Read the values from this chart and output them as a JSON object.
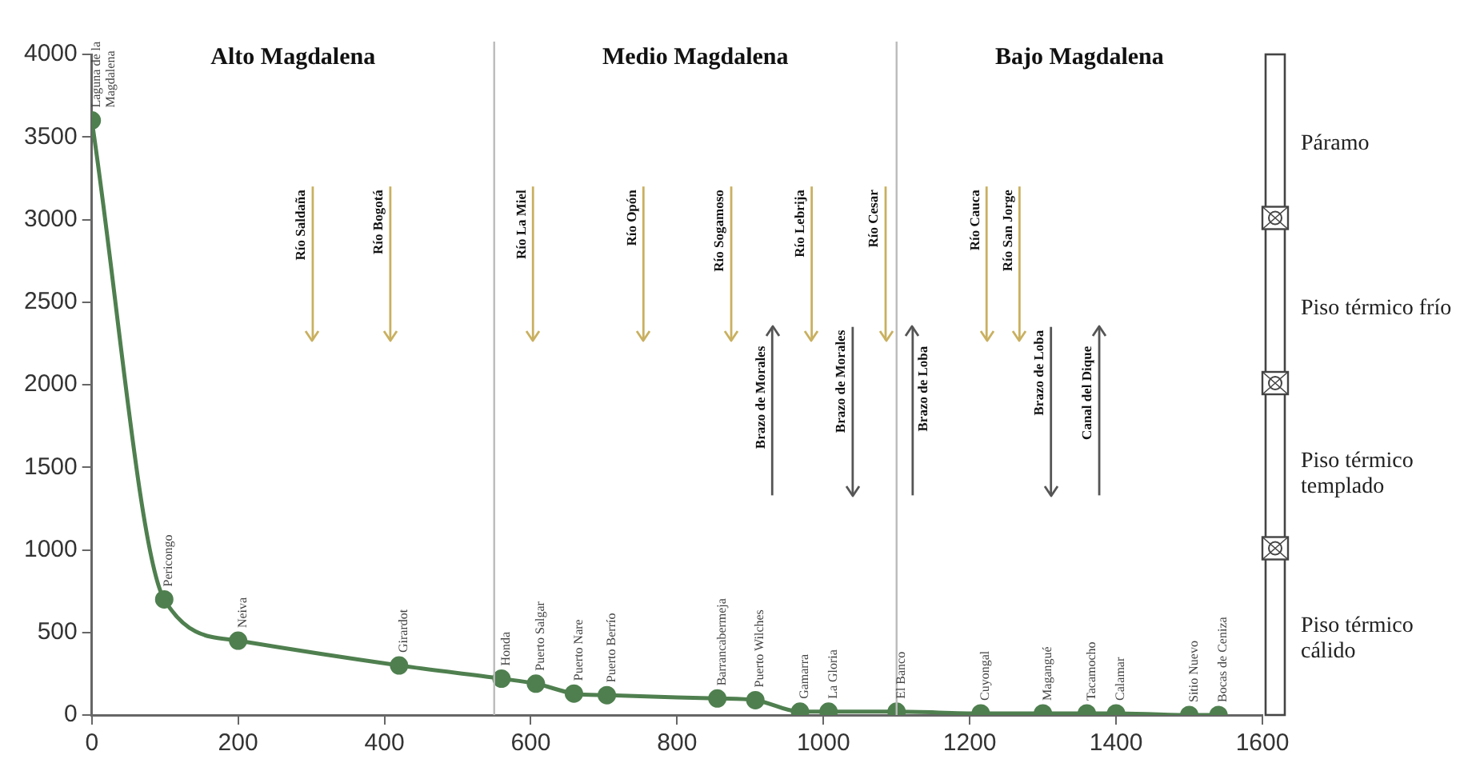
{
  "chart_data": {
    "type": "line",
    "xlim": [
      0,
      1600
    ],
    "xticks": [
      0,
      200,
      400,
      600,
      800,
      1000,
      1200,
      1400,
      1600
    ],
    "ylim": [
      0,
      4000
    ],
    "yticks": [
      0,
      500,
      1000,
      1500,
      2000,
      2500,
      3000,
      3500,
      4000
    ],
    "grid": false,
    "legend": false,
    "marker": "circle",
    "line_style": "solid",
    "series": [
      {
        "color": "#4f7f4f",
        "x": [
          0,
          99,
          200,
          420,
          560,
          607,
          659,
          704,
          855,
          907,
          968,
          1007,
          1100,
          1215,
          1300,
          1360,
          1400,
          1500,
          1540
        ],
        "values": [
          3600,
          700,
          450,
          300,
          220,
          190,
          130,
          120,
          100,
          90,
          20,
          20,
          20,
          10,
          10,
          10,
          10,
          0,
          0
        ]
      }
    ],
    "ref_lines": [
      {
        "axis": "x",
        "value": 550,
        "color": "#bbbbbb"
      },
      {
        "axis": "x",
        "value": 1100,
        "color": "#bbbbbb"
      },
      {
        "axis": "x",
        "value": 302,
        "label": "Río Saldaña",
        "color": "#c9b060"
      },
      {
        "axis": "x",
        "value": 408,
        "label": "Río Bogotá",
        "color": "#c9b060"
      },
      {
        "axis": "x",
        "value": 603,
        "label": "Río La Miel",
        "color": "#c9b060"
      },
      {
        "axis": "x",
        "value": 754,
        "label": "Río Opón",
        "color": "#c9b060"
      },
      {
        "axis": "x",
        "value": 874,
        "label": "Río Sogamoso",
        "color": "#c9b060"
      },
      {
        "axis": "x",
        "value": 930,
        "label": "Brazo de Morales",
        "color": "#555555"
      },
      {
        "axis": "x",
        "value": 984,
        "label": "Río Lebrija",
        "color": "#c9b060"
      },
      {
        "axis": "x",
        "value": 1040,
        "label": "Brazo de Morales",
        "color": "#555555"
      },
      {
        "axis": "x",
        "value": 1085,
        "label": "Río Cesar",
        "color": "#c9b060"
      },
      {
        "axis": "x",
        "value": 1122,
        "label": "Brazo de Loba",
        "color": "#555555"
      },
      {
        "axis": "x",
        "value": 1223,
        "label": "Río Cauca",
        "color": "#c9b060"
      },
      {
        "axis": "x",
        "value": 1268,
        "label": "Río San Jorge",
        "color": "#c9b060"
      },
      {
        "axis": "x",
        "value": 1311,
        "label": "Brazo de Loba",
        "color": "#555555"
      },
      {
        "axis": "x",
        "value": 1377,
        "label": "Canal del Dique",
        "color": "#555555"
      }
    ],
    "annotations": [
      "Alto Magdalena",
      "Medio Magdalena",
      "Bajo Magdalena",
      "Páramo",
      "Piso térmico frío",
      "Piso térmico templado",
      "Piso térmico cálido",
      {
        "text": "Laguna de la Magdalena",
        "x": 0,
        "y": 3600
      },
      {
        "text": "Pericongo",
        "x": 99,
        "y": 700
      },
      {
        "text": "Neiva",
        "x": 200,
        "y": 450
      },
      {
        "text": "Girardot",
        "x": 420,
        "y": 300
      },
      {
        "text": "Honda",
        "x": 560,
        "y": 220
      },
      {
        "text": "Puerto Salgar",
        "x": 607,
        "y": 190
      },
      {
        "text": "Puerto Nare",
        "x": 659,
        "y": 130
      },
      {
        "text": "Puerto Berrío",
        "x": 704,
        "y": 120
      },
      {
        "text": "Barrancabermeja",
        "x": 855,
        "y": 100
      },
      {
        "text": "Puerto Wilches",
        "x": 907,
        "y": 90
      },
      {
        "text": "Gamarra",
        "x": 968,
        "y": 20
      },
      {
        "text": "La Gloria",
        "x": 1007,
        "y": 20
      },
      {
        "text": "El Banco",
        "x": 1100,
        "y": 20
      },
      {
        "text": "Cuyongal",
        "x": 1215,
        "y": 10
      },
      {
        "text": "Magangué",
        "x": 1300,
        "y": 10
      },
      {
        "text": "Tacamocho",
        "x": 1360,
        "y": 10
      },
      {
        "text": "Calamar",
        "x": 1400,
        "y": 10
      },
      {
        "text": "Sitio Nuevo",
        "x": 1500,
        "y": 0
      },
      {
        "text": "Bocas de Ceniza",
        "x": 1540,
        "y": 0
      }
    ]
  }
}
